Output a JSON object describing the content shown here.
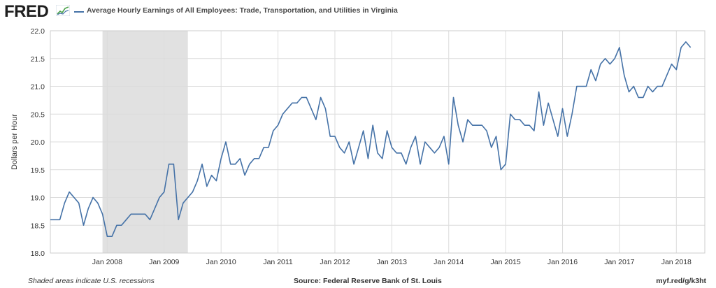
{
  "header": {
    "logo_text": "FRED",
    "logo_icon": "fred-graph-icon",
    "series_title": "Average Hourly Earnings of All Employees: Trade, Transportation, and Utilities in Virginia"
  },
  "footer": {
    "note": "Shaded areas indicate U.S. recessions",
    "source": "Source: Federal Reserve Bank of St. Louis",
    "link": "myf.red/g/k3ht"
  },
  "colors": {
    "line": "#4572a7",
    "recession": "#e1e1e1",
    "grid": "#dcdcdc",
    "background": "#ffffff"
  },
  "chart_data": {
    "type": "line",
    "title": "Average Hourly Earnings of All Employees: Trade, Transportation, and Utilities in Virginia",
    "xlabel": "",
    "ylabel": "Dollars per Hour",
    "ylim": [
      18.0,
      22.0
    ],
    "yticks": [
      "18.0",
      "18.5",
      "19.0",
      "19.5",
      "20.0",
      "20.5",
      "21.0",
      "21.5",
      "22.0"
    ],
    "xticks": [
      "Jan 2008",
      "Jan 2009",
      "Jan 2010",
      "Jan 2011",
      "Jan 2012",
      "Jan 2013",
      "Jan 2014",
      "Jan 2015",
      "Jan 2016",
      "Jan 2017",
      "Jan 2018"
    ],
    "frequency": "monthly",
    "start": "2007-01",
    "grid": true,
    "legend": "top-left",
    "recessions": [
      {
        "start": "2007-12",
        "end": "2009-06"
      }
    ],
    "series": [
      {
        "name": "Average Hourly Earnings of All Employees: Trade, Transportation, and Utilities in Virginia",
        "values": [
          18.6,
          18.6,
          18.6,
          18.9,
          19.1,
          19.0,
          18.9,
          18.5,
          18.8,
          19.0,
          18.9,
          18.7,
          18.3,
          18.3,
          18.5,
          18.5,
          18.6,
          18.7,
          18.7,
          18.7,
          18.7,
          18.6,
          18.8,
          19.0,
          19.1,
          19.6,
          19.6,
          18.6,
          18.9,
          19.0,
          19.1,
          19.3,
          19.6,
          19.2,
          19.4,
          19.3,
          19.7,
          20.0,
          19.6,
          19.6,
          19.7,
          19.4,
          19.6,
          19.7,
          19.7,
          19.9,
          19.9,
          20.2,
          20.3,
          20.5,
          20.6,
          20.7,
          20.7,
          20.8,
          20.8,
          20.6,
          20.4,
          20.8,
          20.6,
          20.1,
          20.1,
          19.9,
          19.8,
          20.0,
          19.6,
          19.9,
          20.2,
          19.7,
          20.3,
          19.8,
          19.7,
          20.2,
          19.9,
          19.8,
          19.8,
          19.6,
          19.9,
          20.1,
          19.6,
          20.0,
          19.9,
          19.8,
          19.9,
          20.1,
          19.6,
          20.8,
          20.3,
          20.0,
          20.4,
          20.3,
          20.3,
          20.3,
          20.2,
          19.9,
          20.1,
          19.5,
          19.6,
          20.5,
          20.4,
          20.4,
          20.3,
          20.3,
          20.2,
          20.9,
          20.3,
          20.7,
          20.4,
          20.1,
          20.6,
          20.1,
          20.5,
          21.0,
          21.0,
          21.0,
          21.3,
          21.1,
          21.4,
          21.5,
          21.4,
          21.5,
          21.7,
          21.2,
          20.9,
          21.0,
          20.8,
          20.8,
          21.0,
          20.9,
          21.0,
          21.0,
          21.2,
          21.4,
          21.3,
          21.7,
          21.8,
          21.7
        ]
      }
    ]
  }
}
